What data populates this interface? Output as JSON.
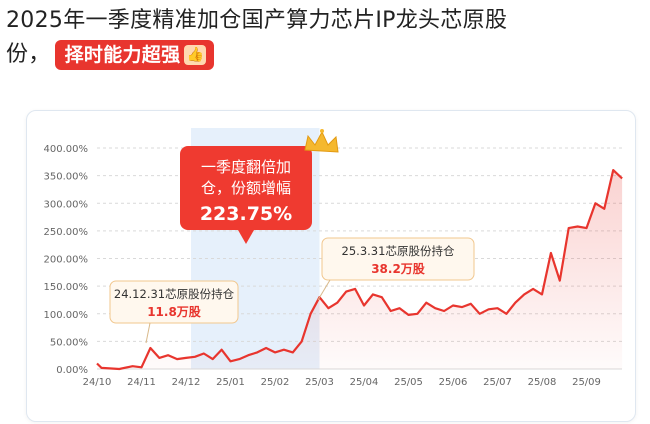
{
  "headline": {
    "line1": "2025年一季度精准加仓国产算力芯片IP龙头芯原股",
    "line2_prefix": "份，",
    "tag": "择时能力超强",
    "tag_icon": "thumbs-up-icon"
  },
  "colors": {
    "line": "#e8352e",
    "highlight_band": "#e6f0fb",
    "tag": "#e8352e",
    "callout_bg": "#fff8ee",
    "callout_border": "#f1c78e"
  },
  "callouts": {
    "main": {
      "line1": "一季度翻倍加",
      "line2": "仓，份额增幅",
      "value": "223.75%",
      "icon": "crown-icon"
    },
    "q4": {
      "label": "24.12.31芯原股份持仓",
      "value": "11.8万股"
    },
    "q1": {
      "label": "25.3.31芯原股份持仓",
      "value": "38.2万股"
    }
  },
  "chart_data": {
    "type": "area",
    "ylim": [
      0,
      400
    ],
    "y_ticks": [
      "0.00%",
      "50.00%",
      "100.00%",
      "150.00%",
      "200.00%",
      "250.00%",
      "300.00%",
      "350.00%",
      "400.00%"
    ],
    "x_ticks": [
      "24/10",
      "24/11",
      "24/12",
      "25/01",
      "25/02",
      "25/03",
      "25/04",
      "25/05",
      "25/06",
      "25/07",
      "25/08",
      "25/09"
    ],
    "highlight_period": [
      "24/12",
      "25/03"
    ],
    "x": [
      0,
      0.1,
      0.5,
      0.8,
      1.0,
      1.2,
      1.4,
      1.6,
      1.8,
      2.0,
      2.2,
      2.4,
      2.6,
      2.8,
      3.0,
      3.2,
      3.4,
      3.6,
      3.8,
      4.0,
      4.2,
      4.4,
      4.6,
      4.8,
      5.0,
      5.2,
      5.4,
      5.6,
      5.8,
      6.0,
      6.2,
      6.4,
      6.6,
      6.8,
      7.0,
      7.2,
      7.4,
      7.6,
      7.8,
      8.0,
      8.2,
      8.4,
      8.6,
      8.8,
      9.0,
      9.2,
      9.4,
      9.6,
      9.8,
      10.0,
      10.2,
      10.4,
      10.6,
      10.8,
      11.0,
      11.2,
      11.4,
      11.6,
      11.8
    ],
    "values": [
      10,
      2,
      0,
      5,
      3,
      38,
      20,
      25,
      18,
      20,
      22,
      28,
      18,
      35,
      14,
      18,
      25,
      30,
      38,
      30,
      35,
      30,
      50,
      100,
      130,
      110,
      120,
      140,
      145,
      115,
      135,
      130,
      105,
      110,
      98,
      100,
      120,
      110,
      105,
      115,
      112,
      118,
      100,
      108,
      110,
      100,
      120,
      135,
      145,
      135,
      210,
      160,
      255,
      258,
      255,
      300,
      290,
      360,
      345
    ]
  }
}
